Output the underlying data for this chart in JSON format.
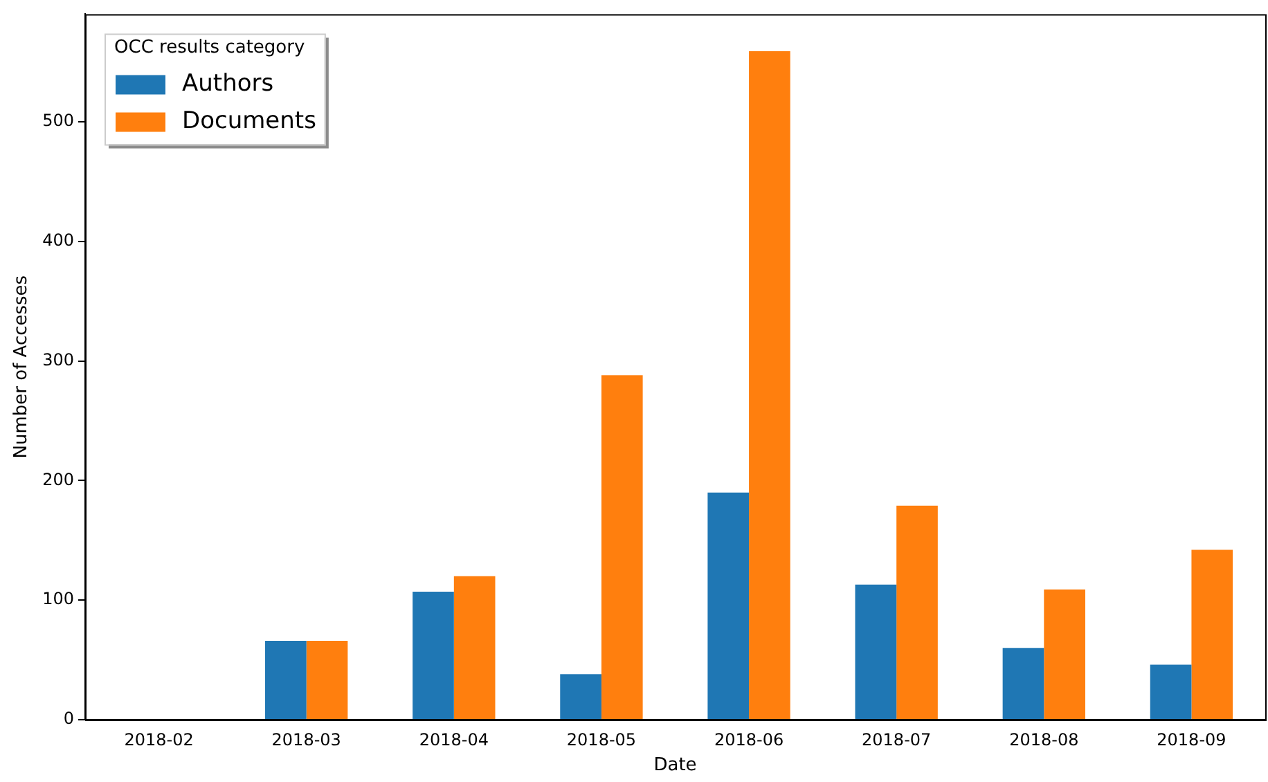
{
  "chart_data": {
    "type": "bar",
    "xlabel": "Date",
    "ylabel": "Number of Accesses",
    "legend_title": "OCC results category",
    "legend": "top left",
    "grid": false,
    "categories": [
      "2018-02",
      "2018-03",
      "2018-04",
      "2018-05",
      "2018-06",
      "2018-07",
      "2018-08",
      "2018-09"
    ],
    "series": [
      {
        "name": "Authors",
        "color": "#1f77b4",
        "values": [
          0,
          66,
          107,
          38,
          190,
          113,
          60,
          46
        ]
      },
      {
        "name": "Documents",
        "color": "#ff7f0e",
        "values": [
          0,
          66,
          120,
          288,
          559,
          179,
          109,
          142
        ]
      }
    ],
    "ylim": [
      0,
      590
    ],
    "yticks": [
      0,
      100,
      200,
      300,
      400,
      500
    ]
  }
}
